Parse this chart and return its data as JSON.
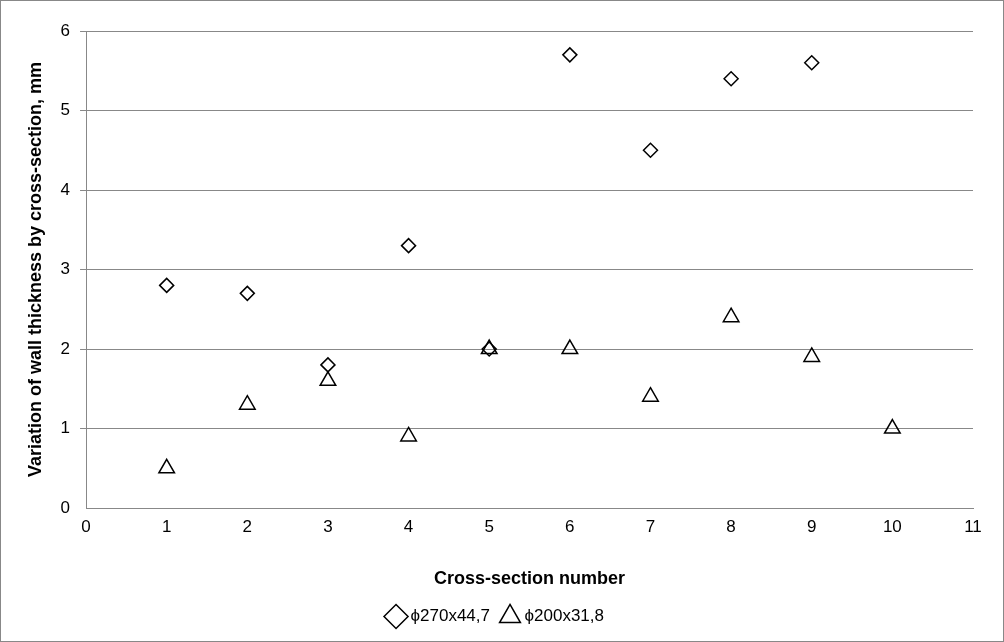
{
  "chart_data": {
    "type": "scatter",
    "xlabel": "Cross-section number",
    "ylabel": "Variation of wall thickness by cross-section, mm",
    "xlim": [
      0,
      11
    ],
    "xticks": [
      0,
      1,
      2,
      3,
      4,
      5,
      6,
      7,
      8,
      9,
      10,
      11
    ],
    "ylim": [
      0,
      6
    ],
    "yticks": [
      0,
      1,
      2,
      3,
      4,
      5,
      6
    ],
    "grid": "y",
    "legend": "bottom",
    "series": [
      {
        "name": "ϕ270x44,7",
        "color": "#000000",
        "marker": "diamond",
        "x": [
          1,
          2,
          3,
          4,
          5,
          6,
          7,
          8,
          9
        ],
        "values": [
          2.8,
          2.7,
          1.8,
          3.3,
          2.0,
          5.7,
          4.5,
          5.4,
          5.6
        ]
      },
      {
        "name": "ϕ200x31,8",
        "color": "#000000",
        "marker": "triangle",
        "x": [
          1,
          2,
          3,
          4,
          5,
          6,
          7,
          8,
          9,
          10
        ],
        "values": [
          0.5,
          1.3,
          1.6,
          0.9,
          2.0,
          2.0,
          1.4,
          2.4,
          1.9,
          1.0
        ]
      }
    ]
  }
}
